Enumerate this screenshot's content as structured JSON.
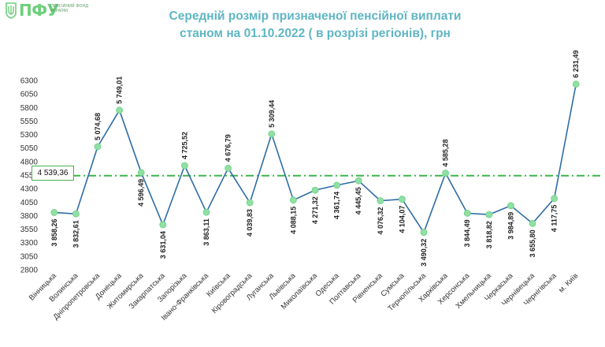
{
  "logo": {
    "word": "ПФУ",
    "subtitle": "ПЕНСІЙНИЙ ФОНД УКРАЇНИ"
  },
  "header": {
    "title_line1": "Середній розмір призначеної пенсійної виплати",
    "title_line2": "станом на 01.10.2022 ( в розрізі регіонів), грн"
  },
  "colors": {
    "line": "#2e6da4",
    "marker": "#8fe0a2",
    "average_line": "#3cb44b",
    "title": "#5fb6c4",
    "logo": "#6fcf7c"
  },
  "chart_data": {
    "type": "line",
    "title": "Середній розмір призначеної пенсійної виплати станом на 01.10.2022 ( в розрізі регіонів), грн",
    "categories": [
      "Вінницька",
      "Волинська",
      "Дніпропетровська",
      "Донецька",
      "Житомирська",
      "Закарпатська",
      "Запорізька",
      "Івано-Франківська",
      "Київська",
      "Кіровоградська",
      "Луганська",
      "Львівська",
      "Миколаївська",
      "Одеська",
      "Полтавська",
      "Рівненська",
      "Сумська",
      "Тернопільська",
      "Харківська",
      "Херсонська",
      "Хмельницька",
      "Черкаська",
      "Чернівецька",
      "Чернігівська",
      "м. Київ"
    ],
    "values": [
      3858.26,
      3832.61,
      5074.68,
      5749.01,
      4596.49,
      3631.04,
      4725.52,
      3863.11,
      4676.79,
      4039.83,
      5309.44,
      4088.15,
      4271.32,
      4361.74,
      4445.45,
      4076.32,
      4104.07,
      3490.32,
      4585.28,
      3844.49,
      3818.82,
      3984.89,
      3655.8,
      4117.75,
      6231.49
    ],
    "labels": [
      "3 858,26",
      "3 832,61",
      "5 074,68",
      "5 749,01",
      "4 596,49",
      "3 631,04",
      "4 725,52",
      "3 863,11",
      "4 676,79",
      "4 039,83",
      "5 309,44",
      "4 088,15",
      "4 271,32",
      "4 361,74",
      "4 445,45",
      "4 076,32",
      "4 104,07",
      "3 490,32",
      "4 585,28",
      "3 844,49",
      "3 818,82",
      "3 984,89",
      "3 655,80",
      "4 117,75",
      "6 231,49"
    ],
    "label_position": [
      "below",
      "below",
      "above",
      "above",
      "below",
      "below",
      "above",
      "below",
      "above",
      "below",
      "above",
      "below",
      "below",
      "below",
      "below",
      "below",
      "below",
      "below",
      "above",
      "below",
      "below",
      "below",
      "below",
      "below",
      "above"
    ],
    "average": {
      "value": 4539.36,
      "label": "4 539,36"
    },
    "yticks": [
      "2800",
      "3050",
      "3300",
      "3550",
      "3800",
      "4050",
      "4300",
      "4550",
      "4800",
      "5050",
      "5300",
      "5550",
      "5800",
      "6050",
      "6300"
    ],
    "ylim": [
      2800,
      6300
    ],
    "grid": false,
    "legend": "none"
  }
}
